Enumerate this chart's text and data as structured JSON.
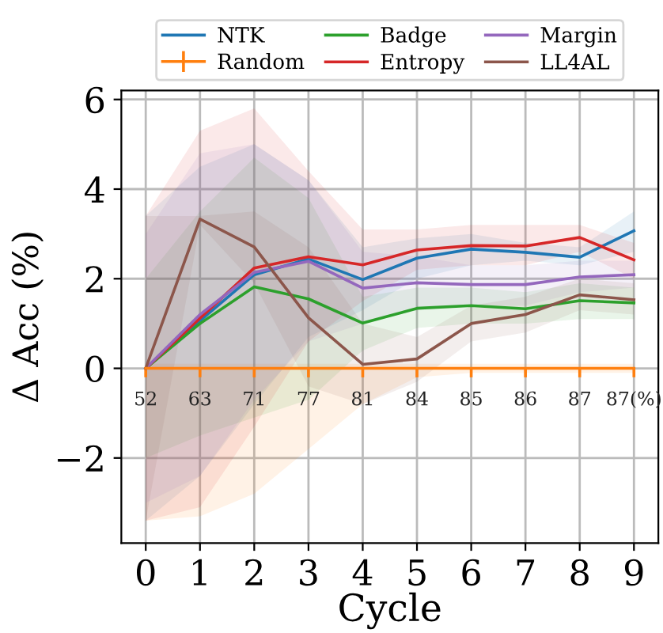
{
  "chart_data": {
    "type": "line",
    "xlabel": "Cycle",
    "ylabel": "Δ Acc (%)",
    "x": [
      0,
      1,
      2,
      3,
      4,
      5,
      6,
      7,
      8,
      9
    ],
    "xlim": [
      -0.45,
      9.45
    ],
    "ylim": [
      -3.9,
      6.2
    ],
    "xticks": [
      0,
      1,
      2,
      3,
      4,
      5,
      6,
      7,
      8,
      9
    ],
    "yticks": [
      -2,
      0,
      2,
      4,
      6
    ],
    "grid": true,
    "legend": "top",
    "marker": "none",
    "line_style": "solid",
    "series": [
      {
        "name": "NTK",
        "color": "#1f77b4",
        "values": [
          0,
          1.06,
          2.09,
          2.44,
          1.98,
          2.46,
          2.66,
          2.59,
          2.48,
          3.07
        ],
        "lower": [
          -3.4,
          -2.4,
          -0.8,
          0.7,
          1.3,
          2.0,
          2.3,
          2.4,
          2.3,
          2.6
        ],
        "upper": [
          3.4,
          4.5,
          5.0,
          4.2,
          2.7,
          2.9,
          3.0,
          2.8,
          2.7,
          3.5
        ]
      },
      {
        "name": "Random",
        "color": "#ff7f0e",
        "values": [
          0,
          0,
          0,
          0,
          0,
          0,
          0,
          0,
          0,
          0
        ],
        "errors": [
          [
            -0.2,
            0
          ],
          [
            -0.2,
            0
          ],
          [
            -0.2,
            0
          ],
          [
            -0.2,
            0
          ],
          [
            -0.2,
            0
          ],
          [
            -0.2,
            0
          ],
          [
            -0.2,
            0
          ],
          [
            -0.2,
            0
          ],
          [
            -0.2,
            0
          ],
          [
            -0.2,
            0
          ]
        ],
        "lower": [
          -3.4,
          -3.3,
          -2.8,
          -1.8,
          -0.8,
          -0.2,
          -0.1,
          -0.1,
          -0.1,
          -0.1
        ],
        "upper": [
          0.1,
          0.1,
          0.1,
          0.1,
          0.1,
          0.1,
          0.1,
          0.1,
          0.1,
          0.1
        ]
      },
      {
        "name": "Badge",
        "color": "#2ca02c",
        "values": [
          0,
          1.0,
          1.82,
          1.55,
          1.01,
          1.34,
          1.4,
          1.33,
          1.51,
          1.46
        ],
        "lower": [
          -2.0,
          -1.5,
          -1.1,
          -0.7,
          0.4,
          0.9,
          1.0,
          1.0,
          1.1,
          1.1
        ],
        "upper": [
          2.0,
          3.5,
          4.7,
          3.8,
          1.6,
          1.8,
          1.8,
          1.7,
          1.9,
          1.8
        ]
      },
      {
        "name": "Entropy",
        "color": "#d62728",
        "values": [
          0,
          1.12,
          2.24,
          2.49,
          2.31,
          2.64,
          2.74,
          2.73,
          2.92,
          2.42
        ],
        "lower": [
          -3.4,
          -3.1,
          -1.3,
          0.6,
          1.5,
          2.2,
          2.3,
          2.3,
          2.6,
          2.0
        ],
        "upper": [
          3.4,
          5.3,
          5.8,
          4.4,
          3.1,
          3.1,
          3.2,
          3.2,
          3.2,
          2.8
        ]
      },
      {
        "name": "Margin",
        "color": "#9467bd",
        "values": [
          0,
          1.2,
          2.14,
          2.39,
          1.79,
          1.91,
          1.87,
          1.87,
          2.04,
          2.09
        ],
        "lower": [
          -3.0,
          -2.4,
          -0.7,
          0.6,
          1.0,
          1.3,
          1.4,
          1.4,
          1.7,
          1.8
        ],
        "upper": [
          3.0,
          4.8,
          5.0,
          4.2,
          2.6,
          2.5,
          2.3,
          2.3,
          2.4,
          2.4
        ]
      },
      {
        "name": "LL4AL",
        "color": "#8c564b",
        "values": [
          0,
          3.33,
          2.71,
          1.13,
          0.09,
          0.21,
          1.0,
          1.2,
          1.64,
          1.53
        ],
        "lower": [
          -3.4,
          3.2,
          1.9,
          -0.4,
          -0.8,
          -0.3,
          0.6,
          0.8,
          1.3,
          1.2
        ],
        "upper": [
          3.4,
          3.4,
          3.5,
          2.7,
          1.0,
          0.7,
          1.4,
          1.6,
          2.0,
          1.9
        ]
      }
    ],
    "annotations": [
      "52",
      "63",
      "71",
      "77",
      "81",
      "84",
      "85",
      "86",
      "87",
      "87(%)"
    ]
  }
}
